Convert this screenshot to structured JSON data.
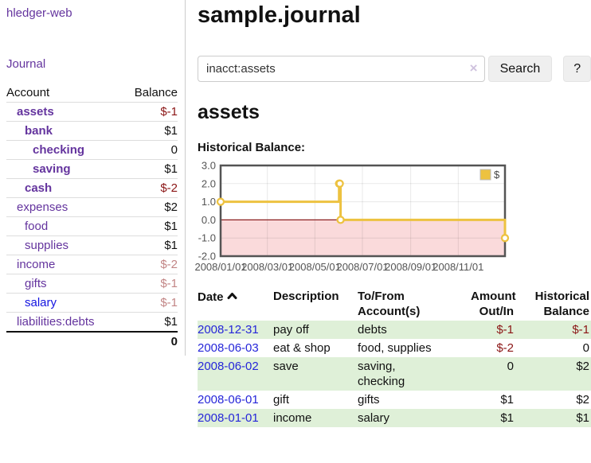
{
  "app": {
    "brand": "hledger-web",
    "nav": {
      "journal": "Journal"
    }
  },
  "page": {
    "title": "sample.journal",
    "account_heading": "assets",
    "chart_label": "Historical Balance:"
  },
  "search": {
    "value": "inacct:assets",
    "clear": "×",
    "search_button": "Search",
    "help_button": "?"
  },
  "sidebar_accounts": {
    "columns": {
      "account": "Account",
      "balance": "Balance"
    },
    "rows": [
      {
        "name": "assets",
        "indent": 1,
        "bold": true,
        "link": "purple",
        "balance": "$-1",
        "tone": "neg"
      },
      {
        "name": "bank",
        "indent": 2,
        "bold": true,
        "link": "purple",
        "balance": "$1",
        "tone": "pos"
      },
      {
        "name": "checking",
        "indent": 3,
        "bold": true,
        "link": "purple",
        "balance": "0",
        "tone": "pos"
      },
      {
        "name": "saving",
        "indent": 3,
        "bold": true,
        "link": "purple",
        "balance": "$1",
        "tone": "pos"
      },
      {
        "name": "cash",
        "indent": 2,
        "bold": true,
        "link": "purple",
        "balance": "$-2",
        "tone": "neg"
      },
      {
        "name": "expenses",
        "indent": 1,
        "bold": false,
        "link": "purple",
        "balance": "$2",
        "tone": "pos"
      },
      {
        "name": "food",
        "indent": 2,
        "bold": false,
        "link": "purple",
        "balance": "$1",
        "tone": "pos"
      },
      {
        "name": "supplies",
        "indent": 2,
        "bold": false,
        "link": "purple",
        "balance": "$1",
        "tone": "pos"
      },
      {
        "name": "income",
        "indent": 1,
        "bold": false,
        "link": "purple",
        "balance": "$-2",
        "tone": "dimneg"
      },
      {
        "name": "gifts",
        "indent": 2,
        "bold": false,
        "link": "purple",
        "balance": "$-1",
        "tone": "dimneg"
      },
      {
        "name": "salary",
        "indent": 2,
        "bold": false,
        "link": "blue",
        "balance": "$-1",
        "tone": "dimneg"
      },
      {
        "name": "liabilities:debts",
        "indent": 1,
        "bold": false,
        "link": "purple",
        "balance": "$1",
        "tone": "pos"
      }
    ],
    "total": "0"
  },
  "chart_data": {
    "type": "line",
    "step": true,
    "title": "Historical Balance",
    "series": [
      {
        "name": "$",
        "color": "#edc240",
        "points": [
          [
            "2008-01-01",
            1
          ],
          [
            "2008-06-01",
            2
          ],
          [
            "2008-06-02",
            2
          ],
          [
            "2008-06-03",
            0
          ],
          [
            "2008-12-31",
            -1
          ]
        ]
      }
    ],
    "x_ticks": [
      "2008/01/01",
      "2008/03/01",
      "2008/05/01",
      "2008/07/01",
      "2008/09/01",
      "2008/11/01"
    ],
    "y_ticks": [
      3.0,
      2.0,
      1.0,
      0.0,
      -1.0,
      -2.0
    ],
    "xlim": [
      "2008-01-01",
      "2008-12-31"
    ],
    "ylim": [
      -2,
      3
    ],
    "grid": true,
    "legend_position": "top-right",
    "legend_label": "$",
    "negative_region_color": "#fadadb",
    "zero_line_color": "#8b2020",
    "border_color": "#545454",
    "tick_label_color": "#545454"
  },
  "register": {
    "columns": [
      "Date",
      "Description",
      "To/From Account(s)",
      "Amount Out/In",
      "Historical Balance"
    ],
    "sort_icon": "chevron-up",
    "rows": [
      {
        "date": "2008-12-31",
        "description": "pay off",
        "accounts_lines": [
          "debts"
        ],
        "amount": "$-1",
        "amount_tone": "neg",
        "balance": "$-1",
        "balance_tone": "neg"
      },
      {
        "date": "2008-06-03",
        "description": "eat & shop",
        "accounts_lines": [
          "food, supplies"
        ],
        "amount": "$-2",
        "amount_tone": "neg",
        "balance": "0",
        "balance_tone": "pos"
      },
      {
        "date": "2008-06-02",
        "description": "save",
        "accounts_lines": [
          "saving,",
          "checking"
        ],
        "amount": "0",
        "amount_tone": "pos",
        "balance": "$2",
        "balance_tone": "pos"
      },
      {
        "date": "2008-06-01",
        "description": "gift",
        "accounts_lines": [
          "gifts"
        ],
        "amount": "$1",
        "amount_tone": "pos",
        "balance": "$2",
        "balance_tone": "pos"
      },
      {
        "date": "2008-01-01",
        "description": "income",
        "accounts_lines": [
          "salary"
        ],
        "amount": "$1",
        "amount_tone": "pos",
        "balance": "$1",
        "balance_tone": "pos"
      }
    ]
  },
  "colors": {
    "link_purple": "#64349e",
    "link_blue": "#1414e0",
    "date_link_blue": "#2626d9",
    "negative_strong": "#8b1515",
    "negative_dim": "#c28585",
    "row_stripe_green": "#dff0d8",
    "chart_line_gold": "#edc240"
  }
}
